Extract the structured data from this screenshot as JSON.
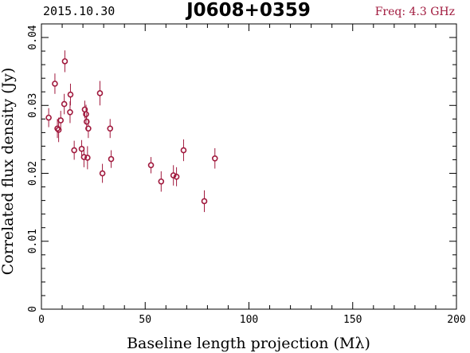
{
  "header": {
    "date": "2015.10.30",
    "source": "J0608+0359",
    "frequency": "Freq: 4.3 GHz"
  },
  "colors": {
    "points": "#a0193d",
    "frequency_text": "#a0193d",
    "axes": "#000000"
  },
  "chart_data": {
    "type": "scatter",
    "title": "J0608+0359",
    "xlabel": "Baseline length projection (Mλ)",
    "ylabel": "Correlated flux density (Jy)",
    "xlim": [
      0,
      200
    ],
    "ylim": [
      0,
      0.042
    ],
    "x_ticks": [
      0,
      50,
      100,
      150,
      200
    ],
    "x_tick_labels": [
      "0",
      "50",
      "100",
      "150",
      "200"
    ],
    "y_ticks": [
      0,
      0.01,
      0.02,
      0.03,
      0.04
    ],
    "y_tick_labels": [
      "0",
      "0.01",
      "0.02",
      "0.03",
      "0.04"
    ],
    "grid": false,
    "series": [
      {
        "marker": "open-circle",
        "error_bars": true,
        "points": [
          {
            "x": 3.5,
            "y": 0.0282,
            "err": 0.0014
          },
          {
            "x": 6.5,
            "y": 0.0332,
            "err": 0.0015
          },
          {
            "x": 7.7,
            "y": 0.0266,
            "err": 0.0014
          },
          {
            "x": 8.3,
            "y": 0.0264,
            "err": 0.0018
          },
          {
            "x": 9.3,
            "y": 0.0278,
            "err": 0.0014
          },
          {
            "x": 11.0,
            "y": 0.0302,
            "err": 0.0015
          },
          {
            "x": 11.3,
            "y": 0.0365,
            "err": 0.0016
          },
          {
            "x": 13.8,
            "y": 0.029,
            "err": 0.0016
          },
          {
            "x": 14.0,
            "y": 0.0316,
            "err": 0.0016
          },
          {
            "x": 15.8,
            "y": 0.0234,
            "err": 0.0014
          },
          {
            "x": 19.4,
            "y": 0.0236,
            "err": 0.0013
          },
          {
            "x": 20.5,
            "y": 0.0224,
            "err": 0.0015
          },
          {
            "x": 20.9,
            "y": 0.0294,
            "err": 0.0013
          },
          {
            "x": 21.5,
            "y": 0.0287,
            "err": 0.0014
          },
          {
            "x": 21.8,
            "y": 0.0276,
            "err": 0.0013
          },
          {
            "x": 22.2,
            "y": 0.0223,
            "err": 0.0017
          },
          {
            "x": 22.6,
            "y": 0.0266,
            "err": 0.0014
          },
          {
            "x": 28.2,
            "y": 0.0318,
            "err": 0.0018
          },
          {
            "x": 29.4,
            "y": 0.02,
            "err": 0.0014
          },
          {
            "x": 33.1,
            "y": 0.0266,
            "err": 0.0014
          },
          {
            "x": 33.6,
            "y": 0.0221,
            "err": 0.0013
          },
          {
            "x": 52.8,
            "y": 0.0212,
            "err": 0.0012
          },
          {
            "x": 57.7,
            "y": 0.0188,
            "err": 0.0015
          },
          {
            "x": 63.6,
            "y": 0.0197,
            "err": 0.0015
          },
          {
            "x": 65.1,
            "y": 0.0195,
            "err": 0.0014
          },
          {
            "x": 68.5,
            "y": 0.0234,
            "err": 0.0016
          },
          {
            "x": 78.5,
            "y": 0.0159,
            "err": 0.0016
          },
          {
            "x": 83.6,
            "y": 0.0222,
            "err": 0.0015
          }
        ]
      }
    ]
  }
}
